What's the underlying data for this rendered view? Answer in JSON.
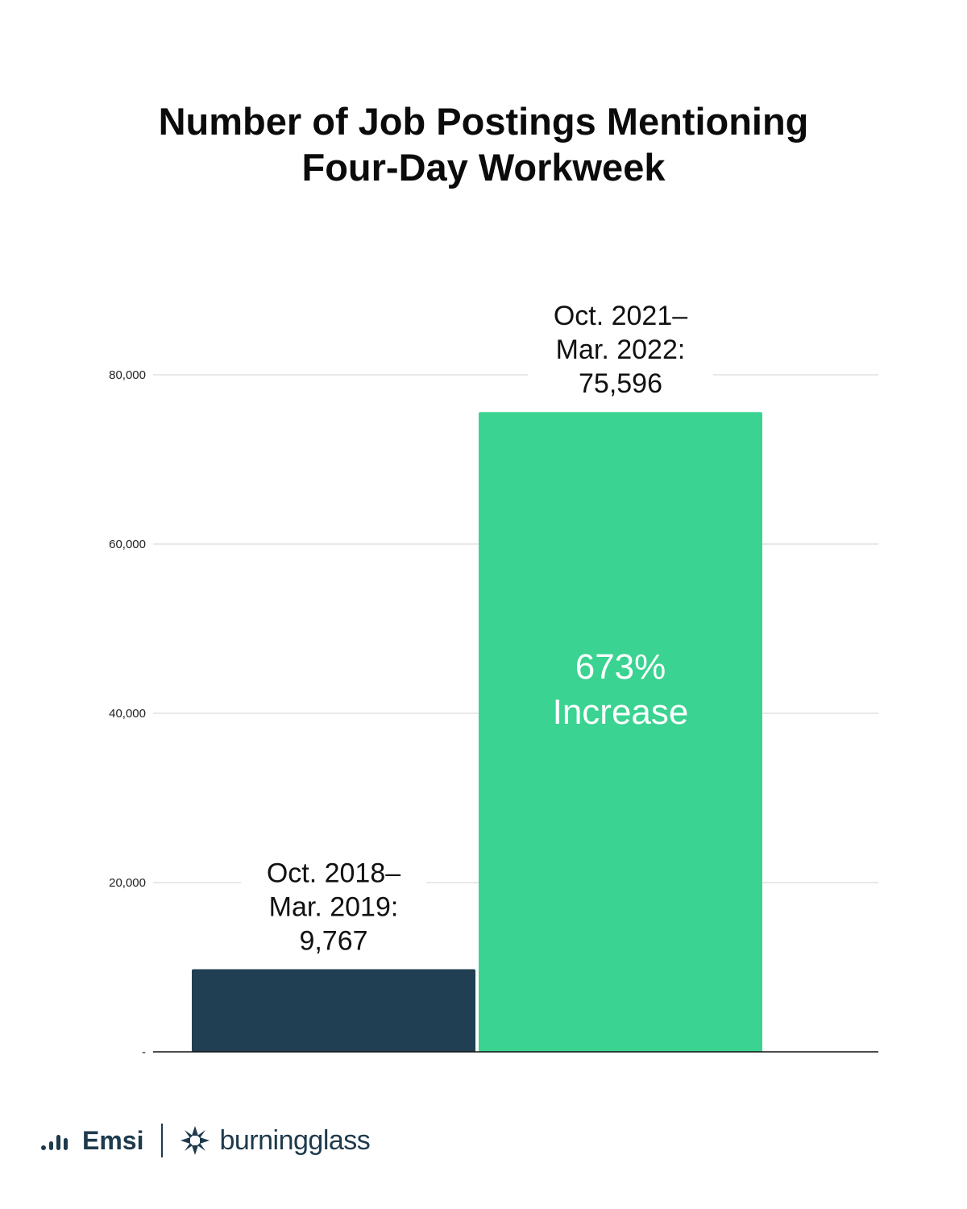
{
  "title_lines": [
    "Number of Job Postings Mentioning",
    "Four-Day Workweek"
  ],
  "chart_data": {
    "type": "bar",
    "title": "Number of Job Postings Mentioning Four-Day Workweek",
    "categories": [
      "Oct. 2018–Mar. 2019",
      "Oct. 2021–Mar. 2022"
    ],
    "values": [
      9767,
      75596
    ],
    "bar_labels": [
      [
        "Oct. 2018–",
        "Mar. 2019:",
        "9,767"
      ],
      [
        "Oct. 2021–",
        "Mar. 2022:",
        "75,596"
      ]
    ],
    "bar_colors": [
      "#213f52",
      "#3ad391"
    ],
    "y_ticks": [
      0,
      20000,
      40000,
      60000,
      80000
    ],
    "y_tick_labels": [
      "-",
      "20,000",
      "40,000",
      "60,000",
      "80,000"
    ],
    "ylim": [
      0,
      85000
    ],
    "grid": true,
    "annotation": [
      "673%",
      "Increase"
    ],
    "xlabel": "",
    "ylabel": ""
  },
  "footer": {
    "emsi_label": "Emsi",
    "bg_label": "burningglass",
    "brand_color": "#1e3a4d"
  }
}
